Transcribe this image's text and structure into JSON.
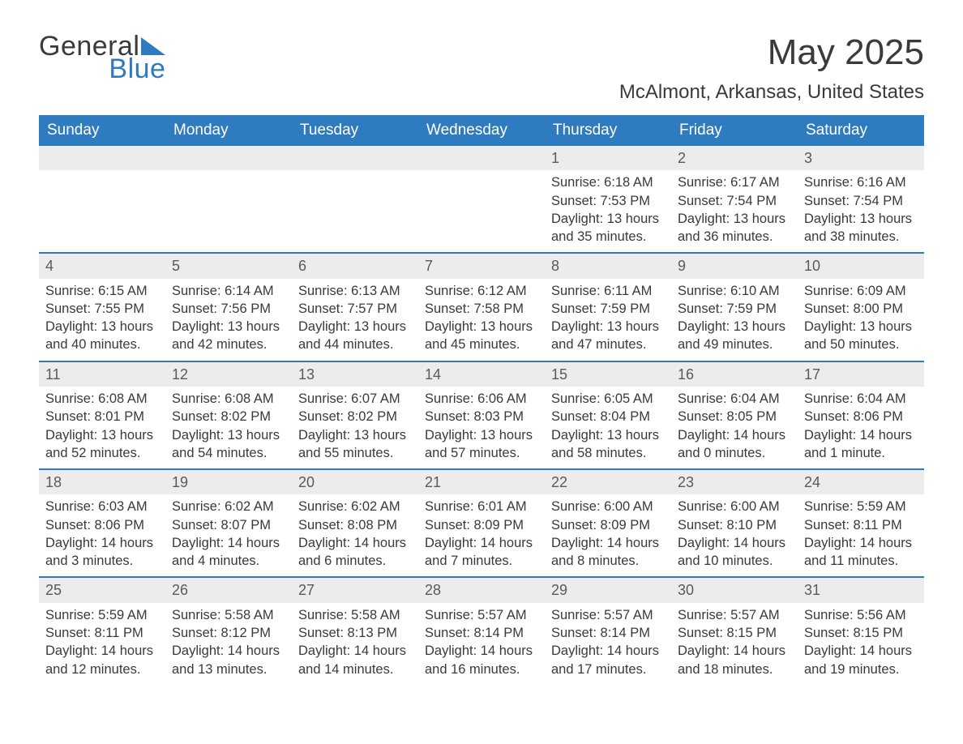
{
  "logo": {
    "text1": "General",
    "text2": "Blue",
    "accent_color": "#2f7bbf"
  },
  "title": "May 2025",
  "location": "McAlmont, Arkansas, United States",
  "colors": {
    "header_bg": "#2f7bbf",
    "header_text": "#ffffff",
    "daynum_bg": "#ececec",
    "row_border": "#2f7bbf",
    "body_text": "#3a3a3a",
    "background": "#ffffff"
  },
  "fonts": {
    "title_size": 44,
    "location_size": 24,
    "weekday_size": 19,
    "body_size": 16.5,
    "daynum_size": 18
  },
  "layout": {
    "columns": 7,
    "rows": 5,
    "first_day_column": 4
  },
  "weekdays": [
    "Sunday",
    "Monday",
    "Tuesday",
    "Wednesday",
    "Thursday",
    "Friday",
    "Saturday"
  ],
  "days": [
    {
      "n": 1,
      "sunrise": "6:18 AM",
      "sunset": "7:53 PM",
      "daylight": "13 hours and 35 minutes."
    },
    {
      "n": 2,
      "sunrise": "6:17 AM",
      "sunset": "7:54 PM",
      "daylight": "13 hours and 36 minutes."
    },
    {
      "n": 3,
      "sunrise": "6:16 AM",
      "sunset": "7:54 PM",
      "daylight": "13 hours and 38 minutes."
    },
    {
      "n": 4,
      "sunrise": "6:15 AM",
      "sunset": "7:55 PM",
      "daylight": "13 hours and 40 minutes."
    },
    {
      "n": 5,
      "sunrise": "6:14 AM",
      "sunset": "7:56 PM",
      "daylight": "13 hours and 42 minutes."
    },
    {
      "n": 6,
      "sunrise": "6:13 AM",
      "sunset": "7:57 PM",
      "daylight": "13 hours and 44 minutes."
    },
    {
      "n": 7,
      "sunrise": "6:12 AM",
      "sunset": "7:58 PM",
      "daylight": "13 hours and 45 minutes."
    },
    {
      "n": 8,
      "sunrise": "6:11 AM",
      "sunset": "7:59 PM",
      "daylight": "13 hours and 47 minutes."
    },
    {
      "n": 9,
      "sunrise": "6:10 AM",
      "sunset": "7:59 PM",
      "daylight": "13 hours and 49 minutes."
    },
    {
      "n": 10,
      "sunrise": "6:09 AM",
      "sunset": "8:00 PM",
      "daylight": "13 hours and 50 minutes."
    },
    {
      "n": 11,
      "sunrise": "6:08 AM",
      "sunset": "8:01 PM",
      "daylight": "13 hours and 52 minutes."
    },
    {
      "n": 12,
      "sunrise": "6:08 AM",
      "sunset": "8:02 PM",
      "daylight": "13 hours and 54 minutes."
    },
    {
      "n": 13,
      "sunrise": "6:07 AM",
      "sunset": "8:02 PM",
      "daylight": "13 hours and 55 minutes."
    },
    {
      "n": 14,
      "sunrise": "6:06 AM",
      "sunset": "8:03 PM",
      "daylight": "13 hours and 57 minutes."
    },
    {
      "n": 15,
      "sunrise": "6:05 AM",
      "sunset": "8:04 PM",
      "daylight": "13 hours and 58 minutes."
    },
    {
      "n": 16,
      "sunrise": "6:04 AM",
      "sunset": "8:05 PM",
      "daylight": "14 hours and 0 minutes."
    },
    {
      "n": 17,
      "sunrise": "6:04 AM",
      "sunset": "8:06 PM",
      "daylight": "14 hours and 1 minute."
    },
    {
      "n": 18,
      "sunrise": "6:03 AM",
      "sunset": "8:06 PM",
      "daylight": "14 hours and 3 minutes."
    },
    {
      "n": 19,
      "sunrise": "6:02 AM",
      "sunset": "8:07 PM",
      "daylight": "14 hours and 4 minutes."
    },
    {
      "n": 20,
      "sunrise": "6:02 AM",
      "sunset": "8:08 PM",
      "daylight": "14 hours and 6 minutes."
    },
    {
      "n": 21,
      "sunrise": "6:01 AM",
      "sunset": "8:09 PM",
      "daylight": "14 hours and 7 minutes."
    },
    {
      "n": 22,
      "sunrise": "6:00 AM",
      "sunset": "8:09 PM",
      "daylight": "14 hours and 8 minutes."
    },
    {
      "n": 23,
      "sunrise": "6:00 AM",
      "sunset": "8:10 PM",
      "daylight": "14 hours and 10 minutes."
    },
    {
      "n": 24,
      "sunrise": "5:59 AM",
      "sunset": "8:11 PM",
      "daylight": "14 hours and 11 minutes."
    },
    {
      "n": 25,
      "sunrise": "5:59 AM",
      "sunset": "8:11 PM",
      "daylight": "14 hours and 12 minutes."
    },
    {
      "n": 26,
      "sunrise": "5:58 AM",
      "sunset": "8:12 PM",
      "daylight": "14 hours and 13 minutes."
    },
    {
      "n": 27,
      "sunrise": "5:58 AM",
      "sunset": "8:13 PM",
      "daylight": "14 hours and 14 minutes."
    },
    {
      "n": 28,
      "sunrise": "5:57 AM",
      "sunset": "8:14 PM",
      "daylight": "14 hours and 16 minutes."
    },
    {
      "n": 29,
      "sunrise": "5:57 AM",
      "sunset": "8:14 PM",
      "daylight": "14 hours and 17 minutes."
    },
    {
      "n": 30,
      "sunrise": "5:57 AM",
      "sunset": "8:15 PM",
      "daylight": "14 hours and 18 minutes."
    },
    {
      "n": 31,
      "sunrise": "5:56 AM",
      "sunset": "8:15 PM",
      "daylight": "14 hours and 19 minutes."
    }
  ],
  "labels": {
    "sunrise": "Sunrise: ",
    "sunset": "Sunset: ",
    "daylight": "Daylight: "
  }
}
